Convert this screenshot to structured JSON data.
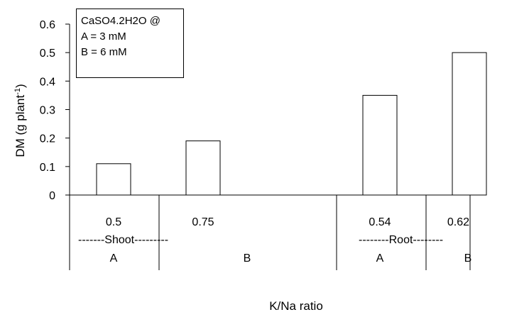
{
  "chart_data": {
    "type": "bar",
    "ylabel": "DM (g plant",
    "ylabel_sup": "-1",
    "ylabel_close": ")",
    "xlabel": "K/Na ratio",
    "ylim": [
      0,
      0.6
    ],
    "yticks": [
      "0",
      "0.1",
      "0.2",
      "0.3",
      "0.4",
      "0.5",
      "0.6"
    ],
    "ytick_values": [
      0,
      0.1,
      0.2,
      0.3,
      0.4,
      0.5,
      0.6
    ],
    "categories": [
      "Shoot A",
      "Shoot B",
      "Root A",
      "Root B"
    ],
    "ratio_labels": [
      "0.5",
      "0.75",
      "0.54",
      "0.62"
    ],
    "treatment_labels": [
      "A",
      "B",
      "A",
      "B"
    ],
    "values": [
      0.11,
      0.19,
      0.35,
      0.5
    ],
    "groups": [
      "-------Shoot---------",
      "--------Root--------"
    ],
    "legend": [
      "CaSO4.2H2O @",
      "A = 3 mM",
      "B = 6 mM"
    ],
    "legend_position": "top-left",
    "grid": false,
    "colors": {
      "bar_fill": "#ffffff",
      "bar_stroke": "#000000",
      "axis": "#000000"
    }
  }
}
